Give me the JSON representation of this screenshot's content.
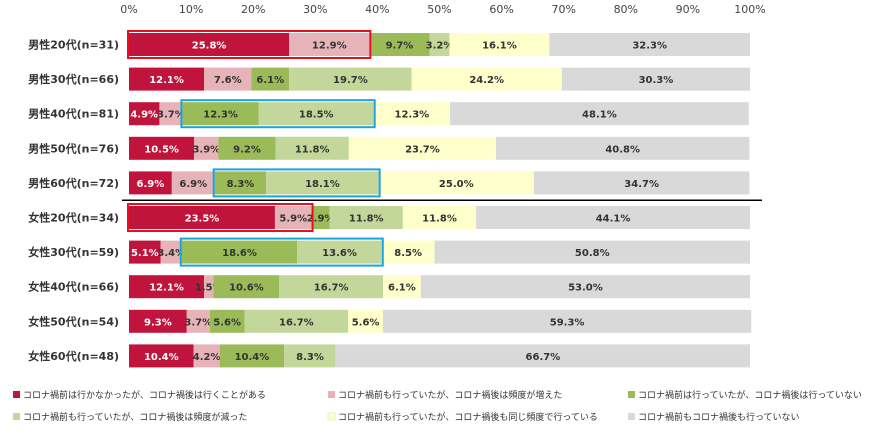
{
  "chart_data": {
    "type": "bar",
    "stacked": true,
    "orientation": "horizontal",
    "xlim": [
      0,
      100
    ],
    "x_tick_labels": [
      "0%",
      "10%",
      "20%",
      "30%",
      "40%",
      "50%",
      "60%",
      "70%",
      "80%",
      "90%",
      "100%"
    ],
    "categories": [
      "男性20代(n=31)",
      "男性30代(n=66)",
      "男性40代(n=81)",
      "男性50代(n=76)",
      "男性60代(n=72)",
      "女性20代(n=34)",
      "女性30代(n=59)",
      "女性40代(n=66)",
      "女性50代(n=54)",
      "女性60代(n=48)"
    ],
    "series": [
      {
        "name": "コロナ禍前は行かなかったが、コロナ禍後は行くことがある",
        "color": "#c0143c",
        "values": [
          25.8,
          12.1,
          4.9,
          10.5,
          6.9,
          23.5,
          5.1,
          12.1,
          9.3,
          10.4
        ],
        "labels": [
          "25.8%",
          "12.1%",
          "4.9%",
          "10.5%",
          "6.9%",
          "23.5%",
          "5.1%",
          "12.1%",
          "9.3%",
          "10.4%"
        ]
      },
      {
        "name": "コロナ禍前も行っていたが、コロナ禍後は頻度が増えた",
        "color": "#e6b4b8",
        "values": [
          12.9,
          7.6,
          3.7,
          3.9,
          6.9,
          5.9,
          3.4,
          1.5,
          3.7,
          4.2
        ],
        "labels": [
          "12.9%",
          "7.6%",
          "3.7%",
          "3.9%",
          "6.9%",
          "5.9%",
          "3.4%",
          "1.5%",
          "3.7%",
          "4.2%"
        ]
      },
      {
        "name": "コロナ禍前は行っていたが、コロナ禍後は行っていない",
        "color": "#9bbb59",
        "values": [
          9.7,
          6.1,
          12.3,
          9.2,
          8.3,
          2.9,
          18.6,
          10.6,
          5.6,
          10.4
        ],
        "labels": [
          "9.7%",
          "6.1%",
          "12.3%",
          "9.2%",
          "8.3%",
          "2.9%",
          "18.6%",
          "10.6%",
          "5.6%",
          "10.4%"
        ]
      },
      {
        "name": "コロナ禍前も行っていたが、コロナ禍後は頻度が減った",
        "color": "#c4d79b",
        "values": [
          3.2,
          19.7,
          18.5,
          11.8,
          18.1,
          11.8,
          13.6,
          16.7,
          16.7,
          8.3
        ],
        "labels": [
          "3.2%",
          "19.7%",
          "18.5%",
          "11.8%",
          "18.1%",
          "11.8%",
          "13.6%",
          "16.7%",
          "16.7%",
          "8.3%"
        ]
      },
      {
        "name": "コロナ禍前も行っていたが、コロナ禍後も同じ頻度で行っている",
        "color": "#ffffcc",
        "values": [
          16.1,
          24.2,
          12.3,
          23.7,
          25.0,
          11.8,
          8.5,
          6.1,
          5.6,
          0
        ],
        "labels": [
          "16.1%",
          "24.2%",
          "12.3%",
          "23.7%",
          "25.0%",
          "11.8%",
          "8.5%",
          "6.1%",
          "5.6%",
          ""
        ]
      },
      {
        "name": "コロナ禍前もコロナ禍後も行っていない",
        "color": "#d9d9d9",
        "values": [
          32.3,
          30.3,
          48.1,
          40.8,
          34.7,
          44.1,
          50.8,
          53.0,
          59.3,
          66.7
        ],
        "labels": [
          "32.3%",
          "30.3%",
          "48.1%",
          "40.8%",
          "34.7%",
          "44.1%",
          "50.8%",
          "53.0%",
          "59.3%",
          "66.7%"
        ]
      }
    ],
    "highlights": [
      {
        "row": 0,
        "from": 0,
        "to": 38.7,
        "color": "#e8101e"
      },
      {
        "row": 5,
        "from": 0,
        "to": 29.4,
        "color": "#e8101e"
      },
      {
        "row": 2,
        "from": 8.6,
        "to": 39.4,
        "color": "#1aa3dc"
      },
      {
        "row": 4,
        "from": 13.8,
        "to": 40.2,
        "color": "#1aa3dc"
      },
      {
        "row": 6,
        "from": 8.5,
        "to": 40.7,
        "color": "#1aa3dc"
      }
    ],
    "divider_after_row": 4,
    "legend_position": "bottom"
  }
}
